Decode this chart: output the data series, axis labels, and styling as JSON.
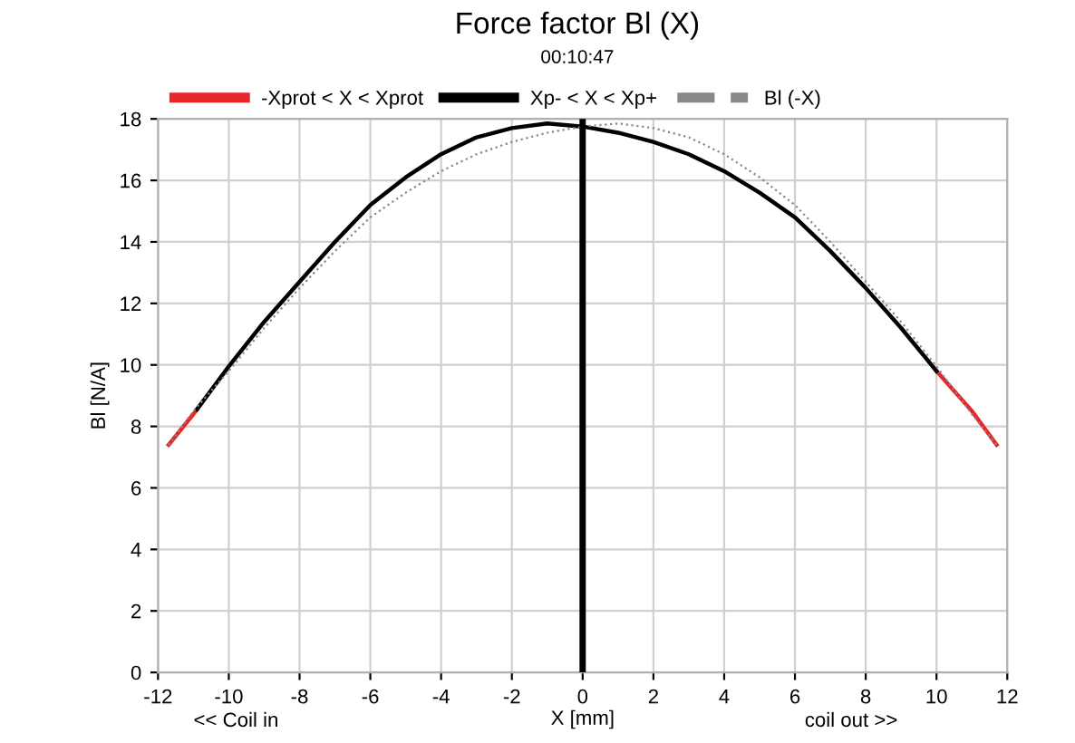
{
  "chart_data": {
    "type": "line",
    "title": "Force factor Bl (X)",
    "subtitle": "00:10:47",
    "xlabel": "X [mm]",
    "ylabel": "Bl [N/A]",
    "annotations": [
      "<< Coil in",
      "coil out >>"
    ],
    "series": [
      {
        "name": "-Xprot < X < Xprot",
        "color": "#e8262a",
        "x": [
          -11.7,
          -11,
          -10.9,
          0,
          10,
          11,
          11.7
        ],
        "values": [
          7.4,
          8.4,
          8.55,
          null,
          9.8,
          8.5,
          7.4
        ]
      },
      {
        "name": "Xp- < X < Xp+",
        "color": "#000000",
        "x": [
          -10.9,
          -10,
          -9,
          -8,
          -7,
          -6,
          -5,
          -4,
          -3,
          -2,
          -1,
          0,
          1,
          2,
          3,
          4,
          5,
          6,
          7,
          8,
          9,
          10
        ],
        "values": [
          8.55,
          9.95,
          11.4,
          12.7,
          14.0,
          15.2,
          16.1,
          16.85,
          17.4,
          17.7,
          17.85,
          17.75,
          17.55,
          17.25,
          16.85,
          16.3,
          15.6,
          14.8,
          13.7,
          12.5,
          11.2,
          9.8
        ]
      },
      {
        "name": "Bl (-X)",
        "color": "#888888",
        "line_style": "dotted",
        "x": [
          -11.7,
          -11,
          -10,
          -9,
          -8,
          -7,
          -6,
          -5,
          -4,
          -3,
          -2,
          -1,
          0,
          1,
          2,
          3,
          4,
          5,
          6,
          7,
          8,
          9,
          10,
          11,
          11.7
        ],
        "values": [
          7.4,
          8.5,
          9.8,
          11.2,
          12.5,
          13.7,
          14.8,
          15.6,
          16.3,
          16.85,
          17.25,
          17.55,
          17.75,
          17.85,
          17.7,
          17.4,
          16.85,
          16.1,
          15.2,
          14.0,
          12.7,
          11.4,
          9.95,
          8.4,
          7.4
        ]
      }
    ],
    "ref_lines": [
      {
        "axis": "x",
        "value": 0,
        "color": "#000000"
      }
    ],
    "xlim": [
      -12,
      12
    ],
    "xticks": [
      -12,
      -10,
      -8,
      -6,
      -4,
      -2,
      0,
      2,
      4,
      6,
      8,
      10,
      12
    ],
    "ylim": [
      0,
      18
    ],
    "yticks": [
      0,
      2,
      4,
      6,
      8,
      10,
      12,
      14,
      16,
      18
    ],
    "grid": true,
    "legend": "top",
    "marker": "none",
    "line_style": "solid"
  }
}
